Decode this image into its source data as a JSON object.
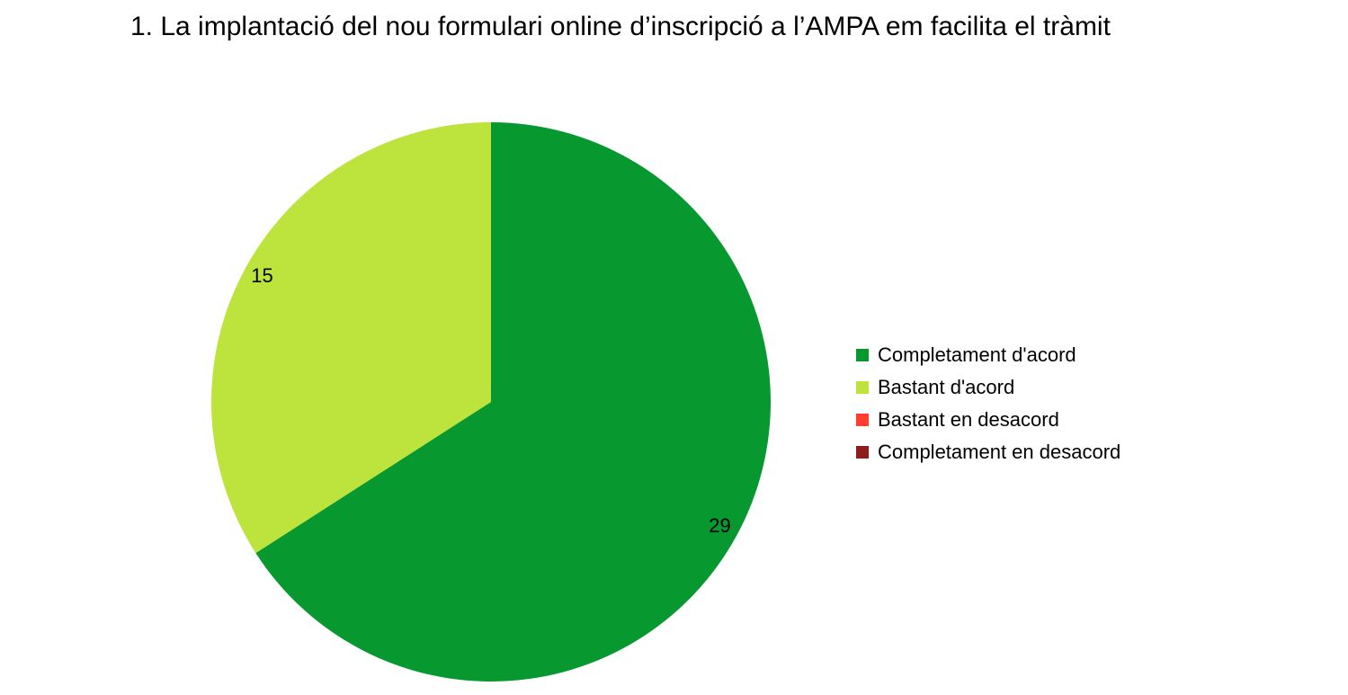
{
  "chart_data": {
    "type": "pie",
    "title": "1. La implantació del nou formulari online d’inscripció a l’AMPA em facilita el tràmit",
    "categories": [
      "Completament d'acord",
      "Bastant d'acord",
      "Bastant en desacord",
      "Completament en desacord"
    ],
    "values": [
      29,
      15,
      0,
      0
    ],
    "colors": [
      "#079830",
      "#bce43c",
      "#ff3e2f",
      "#8b1e1a"
    ],
    "data_labels": [
      "29",
      "15",
      "",
      ""
    ],
    "legend_position": "right",
    "start_angle": "top, clockwise"
  }
}
